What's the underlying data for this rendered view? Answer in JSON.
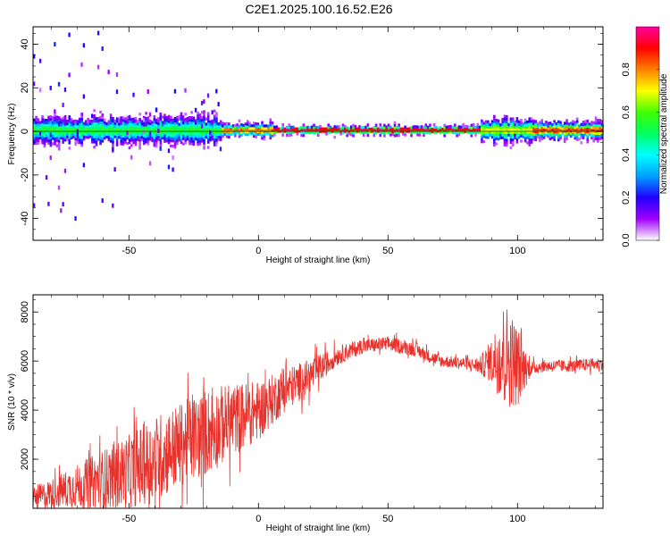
{
  "chart_data": [
    {
      "type": "heatmap",
      "title": "C2E1.2025.100.16.52.E26",
      "xlabel": "Height of straight line (km)",
      "ylabel": "Frequency (Hz)",
      "xlim": [
        -87,
        133
      ],
      "ylim": [
        -50,
        48
      ],
      "xticks": [
        -50,
        0,
        50,
        100
      ],
      "yticks": [
        -40,
        -20,
        0,
        20,
        40
      ],
      "colorbar": {
        "label": "Normalized spectral amplitude",
        "range": [
          0,
          1
        ],
        "ticks": [
          0.0,
          0.2,
          0.4,
          0.6,
          0.8
        ],
        "tick_labels": [
          "0.0",
          "0.2",
          "0.4",
          "0.6",
          "0.8"
        ],
        "colors": [
          "#ffffff",
          "#a000ff",
          "#2000ff",
          "#00a0ff",
          "#00ffff",
          "#00ff60",
          "#40ff00",
          "#ffff00",
          "#ff8000",
          "#ff0000",
          "#ff00a0"
        ]
      },
      "band": {
        "center_frequency": 0,
        "segments": [
          {
            "x_from": -87,
            "x_to": -15,
            "halfwidth": 5,
            "intensity": 0.55
          },
          {
            "x_from": -15,
            "x_to": 5,
            "halfwidth": 2.5,
            "intensity": 0.85
          },
          {
            "x_from": 5,
            "x_to": 85,
            "halfwidth": 1.5,
            "intensity": 0.95
          },
          {
            "x_from": 85,
            "x_to": 105,
            "halfwidth": 4,
            "intensity": 0.7
          },
          {
            "x_from": 105,
            "x_to": 133,
            "halfwidth": 3,
            "intensity": 0.9
          }
        ]
      }
    },
    {
      "type": "line",
      "xlabel": "Height of straight line (km)",
      "ylabel": "SNR (10 * v/v)",
      "xlim": [
        -87,
        133
      ],
      "ylim": [
        0,
        8700
      ],
      "xticks": [
        -50,
        0,
        50,
        100
      ],
      "yticks": [
        2000,
        4000,
        6000,
        8000
      ],
      "color": "#e8312b",
      "series": [
        {
          "x": [
            -87,
            -80,
            -70,
            -60,
            -50,
            -40,
            -30,
            -20,
            -10,
            0,
            10,
            20,
            30,
            40,
            50,
            60,
            70,
            80,
            85,
            90,
            95,
            100,
            103,
            105,
            110,
            120,
            133
          ],
          "values": [
            400,
            600,
            900,
            1200,
            1500,
            2000,
            2600,
            3100,
            3600,
            4000,
            4800,
            5400,
            6200,
            6600,
            6700,
            6500,
            6000,
            5900,
            5800,
            6000,
            6300,
            5800,
            5700,
            5700,
            5800,
            5800,
            5900
          ],
          "noise": [
            500,
            600,
            900,
            1200,
            1500,
            1800,
            1700,
            1800,
            1500,
            1200,
            900,
            700,
            400,
            300,
            300,
            300,
            250,
            250,
            300,
            900,
            2200,
            1700,
            800,
            300,
            250,
            250,
            250
          ]
        }
      ]
    }
  ]
}
